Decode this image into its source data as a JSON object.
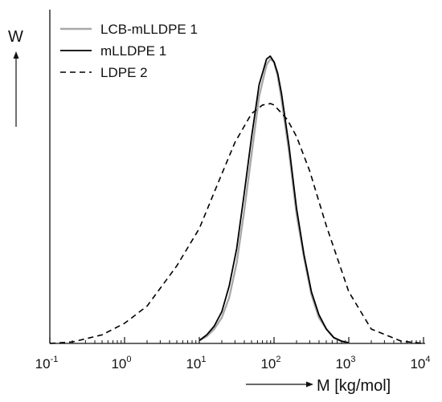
{
  "chart_data": {
    "type": "line",
    "title": "",
    "xlabel": "M [kg/mol]",
    "ylabel": "W",
    "xscale": "log",
    "xlim": [
      0.1,
      10000
    ],
    "ylim": [
      0,
      1
    ],
    "y_tick_labels": false,
    "grid": false,
    "legend_position": "top-left",
    "x_ticks": [
      {
        "base": "10",
        "exp": "-1",
        "value": 0.1
      },
      {
        "base": "10",
        "exp": "0",
        "value": 1
      },
      {
        "base": "10",
        "exp": "1",
        "value": 10
      },
      {
        "base": "10",
        "exp": "2",
        "value": 100
      },
      {
        "base": "10",
        "exp": "3",
        "value": 1000
      },
      {
        "base": "10",
        "exp": "4",
        "value": 10000
      }
    ],
    "series": [
      {
        "name": "LCB-mLLDPE 1",
        "color": "#a8a8a8",
        "style": "solid",
        "x": [
          10,
          12.6,
          15.8,
          20,
          25.1,
          31.6,
          39.8,
          50.1,
          63.1,
          79.4,
          89.1,
          100,
          112,
          126,
          158,
          200,
          251,
          316,
          398,
          501,
          631,
          794,
          1000
        ],
        "y": [
          0.01,
          0.025,
          0.05,
          0.09,
          0.16,
          0.28,
          0.46,
          0.66,
          0.86,
          0.97,
          0.99,
          0.98,
          0.93,
          0.85,
          0.67,
          0.45,
          0.3,
          0.17,
          0.09,
          0.05,
          0.02,
          0.008,
          0.002
        ]
      },
      {
        "name": "mLLDPE 1",
        "color": "#000000",
        "style": "solid",
        "x": [
          10,
          12.6,
          15.8,
          20,
          25.1,
          31.6,
          39.8,
          50.1,
          63.1,
          79.4,
          89.1,
          100,
          112,
          126,
          158,
          200,
          251,
          316,
          398,
          501,
          631,
          794,
          1000
        ],
        "y": [
          0.01,
          0.03,
          0.06,
          0.11,
          0.2,
          0.33,
          0.52,
          0.72,
          0.9,
          0.99,
          1.0,
          0.98,
          0.94,
          0.87,
          0.69,
          0.47,
          0.31,
          0.18,
          0.1,
          0.05,
          0.02,
          0.008,
          0.002
        ]
      },
      {
        "name": "LDPE 2",
        "color": "#000000",
        "style": "dashed",
        "x": [
          0.1,
          0.2,
          0.5,
          1,
          2,
          5,
          10,
          20,
          30,
          50,
          70,
          90,
          100,
          150,
          200,
          300,
          500,
          1000,
          2000,
          5000,
          10000
        ],
        "y": [
          0.0,
          0.005,
          0.03,
          0.07,
          0.13,
          0.27,
          0.4,
          0.59,
          0.7,
          0.8,
          0.83,
          0.835,
          0.83,
          0.78,
          0.72,
          0.6,
          0.41,
          0.18,
          0.05,
          0.008,
          0.0
        ]
      }
    ]
  }
}
